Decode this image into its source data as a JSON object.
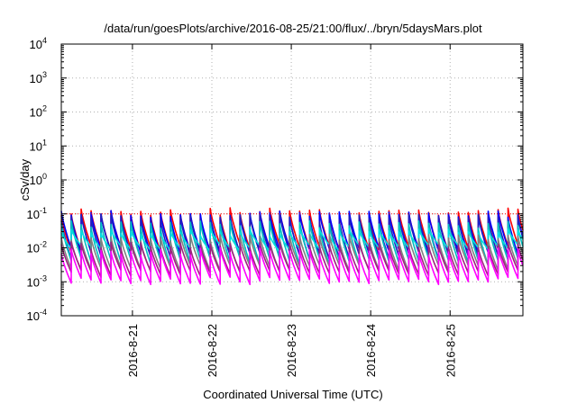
{
  "chart_data": {
    "type": "line",
    "title": "/data/run/goesPlots/archive/2016-08-25/21:00/flux/../bryn/5daysMars.plot",
    "xlabel": "Coordinated Universal Time (UTC)",
    "ylabel": "cSv/day",
    "xlim": [
      "2016-08-20T02:30",
      "2016-08-25T22:00"
    ],
    "ylim": [
      0.0001,
      10000
    ],
    "yscale": "log",
    "grid": true,
    "x_tick_labels": [
      "2016-8-21",
      "2016-8-22",
      "2016-8-23",
      "2016-8-24",
      "2016-8-25"
    ],
    "x_ticks": [
      "2016-08-21",
      "2016-08-22",
      "2016-08-23",
      "2016-08-24",
      "2016-08-25"
    ],
    "y_ticks": [
      {
        "base": "10",
        "exp": "-4"
      },
      {
        "base": "10",
        "exp": "-3"
      },
      {
        "base": "10",
        "exp": "-2"
      },
      {
        "base": "10",
        "exp": "-1"
      },
      {
        "base": "10",
        "exp": "0"
      },
      {
        "base": "10",
        "exp": "1"
      },
      {
        "base": "10",
        "exp": "2"
      },
      {
        "base": "10",
        "exp": "3"
      },
      {
        "base": "10",
        "exp": "4"
      }
    ],
    "reference_line": {
      "value": 0.1,
      "color": "#ff0000"
    },
    "cycle_hours": 3,
    "series": [
      {
        "color": "#ff0000",
        "peak": 0.12,
        "trough": 0.01
      },
      {
        "color": "#0000ff",
        "peak": 0.1,
        "trough": 0.008
      },
      {
        "color": "#2020c0",
        "peak": 0.08,
        "trough": 0.006
      },
      {
        "color": "#00c0c0",
        "peak": 0.05,
        "trough": 0.004
      },
      {
        "color": "#00e0e0",
        "peak": 0.03,
        "trough": 0.01
      },
      {
        "color": "#808080",
        "peak": 0.02,
        "trough": 0.0025
      },
      {
        "color": "#a02080",
        "peak": 0.012,
        "trough": 0.0018
      },
      {
        "color": "#ff00ff",
        "peak": 0.008,
        "trough": 0.0011
      }
    ]
  }
}
